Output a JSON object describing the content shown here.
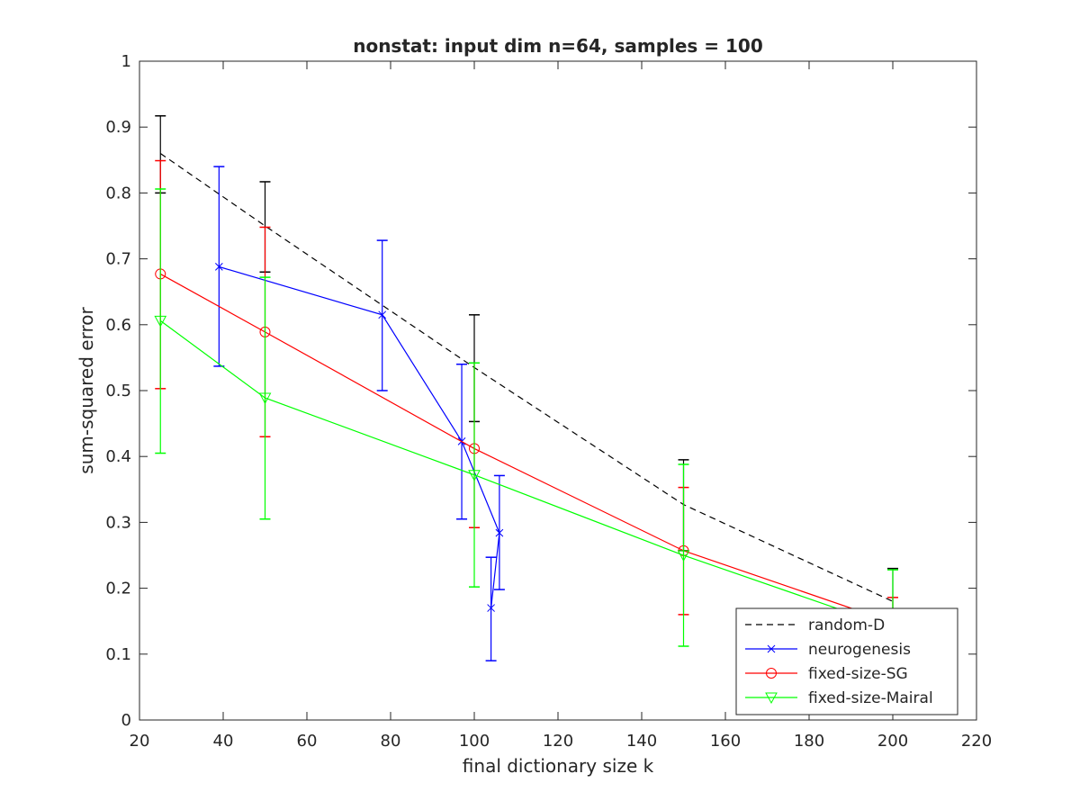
{
  "chart_data": {
    "type": "line",
    "title": "nonstat: input dim n=64, samples = 100",
    "xlabel": "final dictionary size k",
    "ylabel": "sum-squared error",
    "xlim": [
      20,
      220
    ],
    "ylim": [
      0,
      1
    ],
    "xticks": [
      20,
      40,
      60,
      80,
      100,
      120,
      140,
      160,
      180,
      200,
      220
    ],
    "yticks": [
      0,
      0.1,
      0.2,
      0.3,
      0.4,
      0.5,
      0.6,
      0.7,
      0.8,
      0.9,
      1
    ],
    "xtick_labels": [
      "20",
      "40",
      "60",
      "80",
      "100",
      "120",
      "140",
      "160",
      "180",
      "200",
      "220"
    ],
    "ytick_labels": [
      "0",
      "0.1",
      "0.2",
      "0.3",
      "0.4",
      "0.5",
      "0.6",
      "0.7",
      "0.8",
      "0.9",
      "1"
    ],
    "grid": false,
    "legend_position": "bottom-right",
    "series": [
      {
        "name": "random-D",
        "color": "#000000",
        "line_style": "dashed",
        "marker": "none",
        "points": [
          {
            "x": 25,
            "y": 0.86,
            "lo": 0.8,
            "hi": 0.917
          },
          {
            "x": 50,
            "y": 0.75,
            "lo": 0.68,
            "hi": 0.817
          },
          {
            "x": 100,
            "y": 0.535,
            "lo": 0.453,
            "hi": 0.615
          },
          {
            "x": 150,
            "y": 0.327,
            "lo": 0.257,
            "hi": 0.395
          },
          {
            "x": 200,
            "y": 0.18,
            "lo": 0.13,
            "hi": 0.23
          }
        ]
      },
      {
        "name": "neurogenesis",
        "color": "#0000ff",
        "line_style": "solid",
        "marker": "x",
        "points": [
          {
            "x": 39,
            "y": 0.688,
            "lo": 0.537,
            "hi": 0.84
          },
          {
            "x": 78,
            "y": 0.615,
            "lo": 0.5,
            "hi": 0.728
          },
          {
            "x": 97,
            "y": 0.423,
            "lo": 0.305,
            "hi": 0.54
          },
          {
            "x": 106,
            "y": 0.284,
            "lo": 0.198,
            "hi": 0.371
          },
          {
            "x": 104,
            "y": 0.17,
            "lo": 0.09,
            "hi": 0.247
          }
        ]
      },
      {
        "name": "fixed-size-SG",
        "color": "#ff0000",
        "line_style": "solid",
        "marker": "o",
        "points": [
          {
            "x": 25,
            "y": 0.677,
            "lo": 0.503,
            "hi": 0.849
          },
          {
            "x": 50,
            "y": 0.589,
            "lo": 0.43,
            "hi": 0.748
          },
          {
            "x": 100,
            "y": 0.412,
            "lo": 0.292,
            "hi": 0.542
          },
          {
            "x": 150,
            "y": 0.257,
            "lo": 0.16,
            "hi": 0.353
          },
          {
            "x": 200,
            "y": 0.148,
            "lo": 0.11,
            "hi": 0.186
          }
        ]
      },
      {
        "name": "fixed-size-Mairal",
        "color": "#00ff00",
        "line_style": "solid",
        "marker": "v",
        "points": [
          {
            "x": 25,
            "y": 0.606,
            "lo": 0.405,
            "hi": 0.806
          },
          {
            "x": 50,
            "y": 0.489,
            "lo": 0.305,
            "hi": 0.672
          },
          {
            "x": 100,
            "y": 0.372,
            "lo": 0.202,
            "hi": 0.542
          },
          {
            "x": 150,
            "y": 0.25,
            "lo": 0.112,
            "hi": 0.388
          },
          {
            "x": 200,
            "y": 0.14,
            "lo": 0.05,
            "hi": 0.228
          }
        ]
      }
    ]
  }
}
